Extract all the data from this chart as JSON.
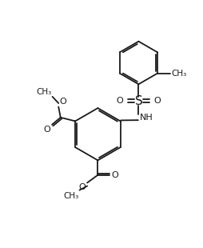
{
  "bg_color": "#ffffff",
  "line_color": "#1a1a1a",
  "lw": 1.3,
  "fs": 8.0,
  "figsize": [
    2.55,
    3.1
  ],
  "dpi": 100,
  "xlim": [
    -1.0,
    9.0
  ],
  "ylim": [
    0.0,
    12.0
  ]
}
